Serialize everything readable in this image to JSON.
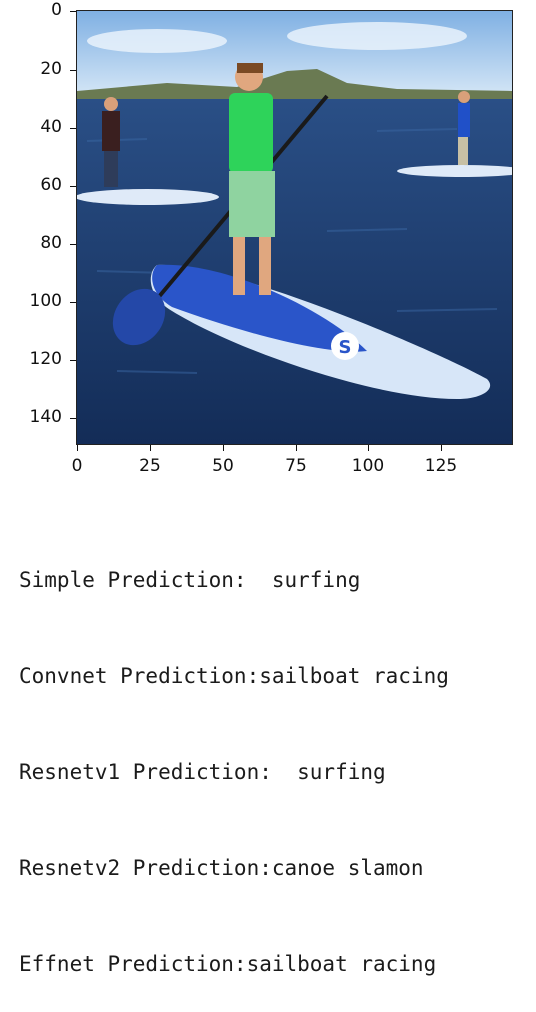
{
  "plot": {
    "y_ticks": [
      "0",
      "20",
      "40",
      "60",
      "80",
      "100",
      "120",
      "140"
    ],
    "x_ticks": [
      "0",
      "25",
      "50",
      "75",
      "100",
      "125"
    ],
    "image_description_icon": "paddleboard-photo-icon"
  },
  "output": [
    "Simple Prediction:  surfing",
    "Convnet Prediction:sailboat racing",
    "Resnetv1 Prediction:  surfing",
    "Resnetv2 Prediction:canoe slamon",
    "Effnet Prediction:sailboat racing"
  ],
  "colors": {
    "sky": "#9fc4ea",
    "water": "#1d3f73",
    "board": "#2a55c9",
    "board_white": "#e8f0fb",
    "shirt": "#2ed35a"
  }
}
